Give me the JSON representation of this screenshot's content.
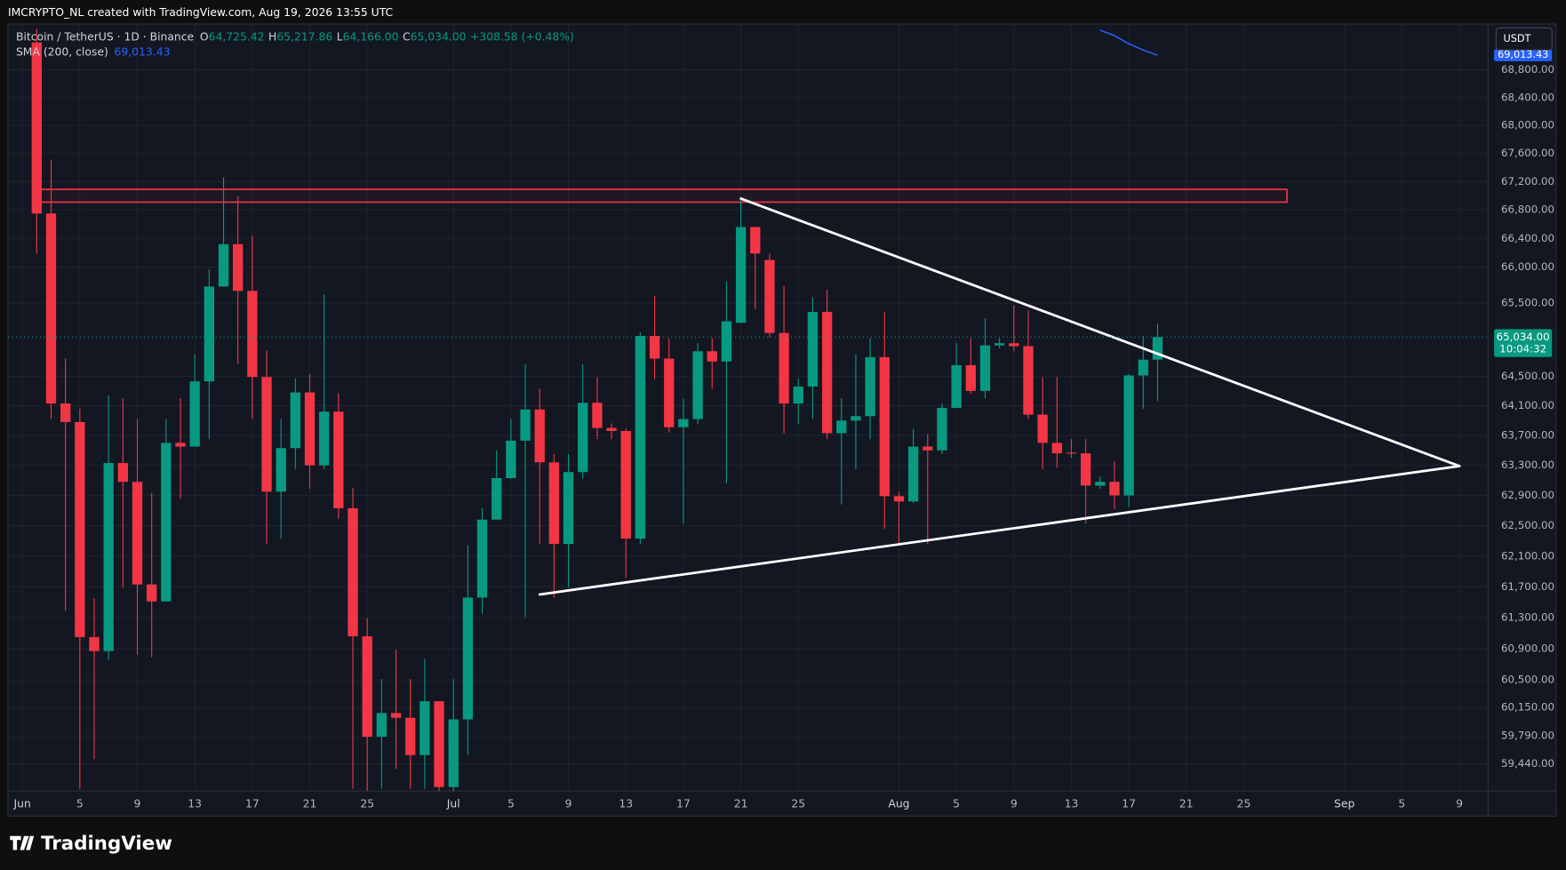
{
  "header": "IMCRYPTO_NL created with TradingView.com, Aug 19, 2026 13:55 UTC",
  "brand": "TradingView",
  "currency": "USDT",
  "countdown": "10:04:32",
  "last_price_label": "65,034.00",
  "chart_data": {
    "type": "candlestick",
    "title": "Bitcoin / TetherUS · 1D · Binance",
    "ohlc_legend": [
      {
        "key": "O",
        "label": "64,725.42"
      },
      {
        "key": "H",
        "label": "65,217.86"
      },
      {
        "key": "L",
        "label": "64,166.00"
      },
      {
        "key": "C",
        "label": "65,034.00"
      }
    ],
    "change_label": "+308.58 (+0.48%)",
    "up_color": "#089981",
    "down_color": "#f23645",
    "log_scale": true,
    "grid": true,
    "xlim": [
      "2026-05-31",
      "2026-09-11"
    ],
    "ylim": [
      59100,
      69470
    ],
    "xticks": [
      {
        "value": "2026-06-01",
        "label": "Jun"
      },
      {
        "value": "2026-06-05",
        "label": "5"
      },
      {
        "value": "2026-06-09",
        "label": "9"
      },
      {
        "value": "2026-06-13",
        "label": "13"
      },
      {
        "value": "2026-06-17",
        "label": "17"
      },
      {
        "value": "2026-06-21",
        "label": "21"
      },
      {
        "value": "2026-06-25",
        "label": "25"
      },
      {
        "value": "2026-07-01",
        "label": "Jul"
      },
      {
        "value": "2026-07-05",
        "label": "5"
      },
      {
        "value": "2026-07-09",
        "label": "9"
      },
      {
        "value": "2026-07-13",
        "label": "13"
      },
      {
        "value": "2026-07-17",
        "label": "17"
      },
      {
        "value": "2026-07-21",
        "label": "21"
      },
      {
        "value": "2026-07-25",
        "label": "25"
      },
      {
        "value": "2026-08-01",
        "label": "Aug"
      },
      {
        "value": "2026-08-05",
        "label": "5"
      },
      {
        "value": "2026-08-09",
        "label": "9"
      },
      {
        "value": "2026-08-13",
        "label": "13"
      },
      {
        "value": "2026-08-17",
        "label": "17"
      },
      {
        "value": "2026-08-21",
        "label": "21"
      },
      {
        "value": "2026-08-25",
        "label": "25"
      },
      {
        "value": "2026-09-01",
        "label": "Sep"
      },
      {
        "value": "2026-09-05",
        "label": "5"
      },
      {
        "value": "2026-09-09",
        "label": "9"
      }
    ],
    "yticks": [
      {
        "value": 68800,
        "label": "68,800.00"
      },
      {
        "value": 68400,
        "label": "68,400.00"
      },
      {
        "value": 68000,
        "label": "68,000.00"
      },
      {
        "value": 67600,
        "label": "67,600.00"
      },
      {
        "value": 67200,
        "label": "67,200.00"
      },
      {
        "value": 66800,
        "label": "66,800.00"
      },
      {
        "value": 66400,
        "label": "66,400.00"
      },
      {
        "value": 66000,
        "label": "66,000.00"
      },
      {
        "value": 65500,
        "label": "65,500.00"
      },
      {
        "value": 64500,
        "label": "64,500.00"
      },
      {
        "value": 64100,
        "label": "64,100.00"
      },
      {
        "value": 63700,
        "label": "63,700.00"
      },
      {
        "value": 63300,
        "label": "63,300.00"
      },
      {
        "value": 62900,
        "label": "62,900.00"
      },
      {
        "value": 62500,
        "label": "62,500.00"
      },
      {
        "value": 62100,
        "label": "62,100.00"
      },
      {
        "value": 61700,
        "label": "61,700.00"
      },
      {
        "value": 61300,
        "label": "61,300.00"
      },
      {
        "value": 60900,
        "label": "60,900.00"
      },
      {
        "value": 60500,
        "label": "60,500.00"
      },
      {
        "value": 60150,
        "label": "60,150.00"
      },
      {
        "value": 59790,
        "label": "59,790.00"
      },
      {
        "value": 59440,
        "label": "59,440.00"
      }
    ],
    "x": [
      "2026-06-02",
      "2026-06-03",
      "2026-06-04",
      "2026-06-05",
      "2026-06-06",
      "2026-06-07",
      "2026-06-08",
      "2026-06-09",
      "2026-06-10",
      "2026-06-11",
      "2026-06-12",
      "2026-06-13",
      "2026-06-14",
      "2026-06-15",
      "2026-06-16",
      "2026-06-17",
      "2026-06-18",
      "2026-06-19",
      "2026-06-20",
      "2026-06-21",
      "2026-06-22",
      "2026-06-23",
      "2026-06-24",
      "2026-06-25",
      "2026-06-26",
      "2026-06-27",
      "2026-06-28",
      "2026-06-29",
      "2026-06-30",
      "2026-07-01",
      "2026-07-02",
      "2026-07-03",
      "2026-07-04",
      "2026-07-05",
      "2026-07-06",
      "2026-07-07",
      "2026-07-08",
      "2026-07-09",
      "2026-07-10",
      "2026-07-11",
      "2026-07-12",
      "2026-07-13",
      "2026-07-14",
      "2026-07-15",
      "2026-07-16",
      "2026-07-17",
      "2026-07-18",
      "2026-07-19",
      "2026-07-20",
      "2026-07-21",
      "2026-07-22",
      "2026-07-23",
      "2026-07-24",
      "2026-07-25",
      "2026-07-26",
      "2026-07-27",
      "2026-07-28",
      "2026-07-29",
      "2026-07-30",
      "2026-07-31",
      "2026-08-01",
      "2026-08-02",
      "2026-08-03",
      "2026-08-04",
      "2026-08-05",
      "2026-08-06",
      "2026-08-07",
      "2026-08-08",
      "2026-08-09",
      "2026-08-10",
      "2026-08-11",
      "2026-08-12",
      "2026-08-13",
      "2026-08-14",
      "2026-08-15",
      "2026-08-16",
      "2026-08-17",
      "2026-08-18",
      "2026-08-19"
    ],
    "open": [
      69200,
      66750,
      64130,
      63880,
      61050,
      60870,
      63330,
      63080,
      61730,
      61510,
      63600,
      63550,
      64430,
      65730,
      66320,
      65670,
      64490,
      62950,
      63530,
      64280,
      63300,
      64020,
      62730,
      61060,
      59780,
      60080,
      60020,
      59550,
      60230,
      59150,
      60000,
      61560,
      62580,
      63130,
      63630,
      64050,
      63340,
      62260,
      63210,
      64140,
      63800,
      63760,
      62330,
      65050,
      64740,
      63810,
      63920,
      64840,
      64700,
      65230,
      66560,
      66100,
      65090,
      64130,
      64360,
      65380,
      63730,
      63900,
      63960,
      64760,
      62890,
      62820,
      63550,
      63500,
      64070,
      64650,
      64300,
      64920,
      64950,
      64910,
      63980,
      63600,
      63470,
      63460,
      63030,
      63080,
      62900,
      64510,
      64725.42
    ],
    "high": [
      69400,
      67510,
      64740,
      64060,
      61550,
      64240,
      64200,
      63920,
      62930,
      63920,
      64200,
      64800,
      65970,
      67260,
      66990,
      66440,
      64850,
      63920,
      64470,
      64530,
      65620,
      64270,
      63000,
      61290,
      60510,
      60890,
      60510,
      60770,
      60230,
      60510,
      62240,
      62730,
      63500,
      63920,
      64660,
      64330,
      63450,
      63450,
      64660,
      64490,
      63860,
      63790,
      65100,
      65600,
      65020,
      64200,
      64950,
      65020,
      65800,
      66950,
      66560,
      66190,
      65740,
      64470,
      65580,
      65690,
      64200,
      64800,
      65020,
      65380,
      62950,
      63790,
      63720,
      64130,
      64950,
      65020,
      65290,
      65020,
      65470,
      65400,
      64490,
      64490,
      63650,
      63650,
      63150,
      63350,
      64530,
      65050,
      65217.86
    ],
    "low": [
      66190,
      63920,
      61390,
      59130,
      59500,
      60760,
      61690,
      60820,
      60790,
      61510,
      62860,
      63550,
      63650,
      65730,
      64670,
      63920,
      62260,
      62330,
      63250,
      62990,
      63250,
      62590,
      59130,
      59100,
      59130,
      59380,
      59130,
      59130,
      59100,
      59100,
      59550,
      61350,
      62580,
      63120,
      61310,
      62260,
      61560,
      61690,
      63120,
      63650,
      63650,
      61820,
      62260,
      64460,
      63740,
      62530,
      63850,
      64330,
      63060,
      65230,
      65420,
      65030,
      63730,
      63850,
      63920,
      63650,
      62780,
      63250,
      63650,
      62460,
      62260,
      62800,
      62260,
      63450,
      64070,
      64260,
      64200,
      64880,
      64840,
      63920,
      63250,
      63270,
      63400,
      62530,
      62990,
      62720,
      62750,
      64060,
      64166
    ],
    "close": [
      66750,
      64130,
      63880,
      61050,
      60870,
      63330,
      63080,
      61730,
      61510,
      63600,
      63550,
      64430,
      65730,
      66320,
      65670,
      64490,
      62950,
      63530,
      64280,
      63300,
      64020,
      62730,
      61060,
      59780,
      60080,
      60020,
      59550,
      60230,
      59150,
      60000,
      61560,
      62580,
      63130,
      63630,
      64050,
      63340,
      62260,
      63210,
      64140,
      63800,
      63760,
      62330,
      65050,
      64740,
      63810,
      63920,
      64840,
      64700,
      65250,
      66560,
      66190,
      65090,
      64130,
      64360,
      65380,
      63730,
      63900,
      63960,
      64760,
      62890,
      62820,
      63550,
      63500,
      64070,
      64650,
      64300,
      64920,
      64950,
      64910,
      63980,
      63600,
      63460,
      63460,
      63030,
      63080,
      62900,
      64510,
      64725,
      65034
    ],
    "sma": {
      "name": "SMA (200, close)",
      "value_label": "69,013.43",
      "color": "#2962ff",
      "x": [
        "2026-08-15",
        "2026-08-16",
        "2026-08-17",
        "2026-08-18",
        "2026-08-19"
      ],
      "values": [
        69380,
        69300,
        69180,
        69090,
        69013.43
      ]
    },
    "zones": [
      {
        "top": 67090,
        "bottom": 66910,
        "start": "2026-06-02",
        "end": "2026-08-28",
        "color": "#f23645"
      }
    ],
    "trendlines": [
      {
        "x": [
          "2026-07-21",
          "2026-09-09"
        ],
        "y": [
          66960,
          63290
        ],
        "color": "#ffffff"
      },
      {
        "x": [
          "2026-07-07",
          "2026-09-09"
        ],
        "y": [
          61600,
          63290
        ],
        "color": "#ffffff"
      }
    ]
  }
}
